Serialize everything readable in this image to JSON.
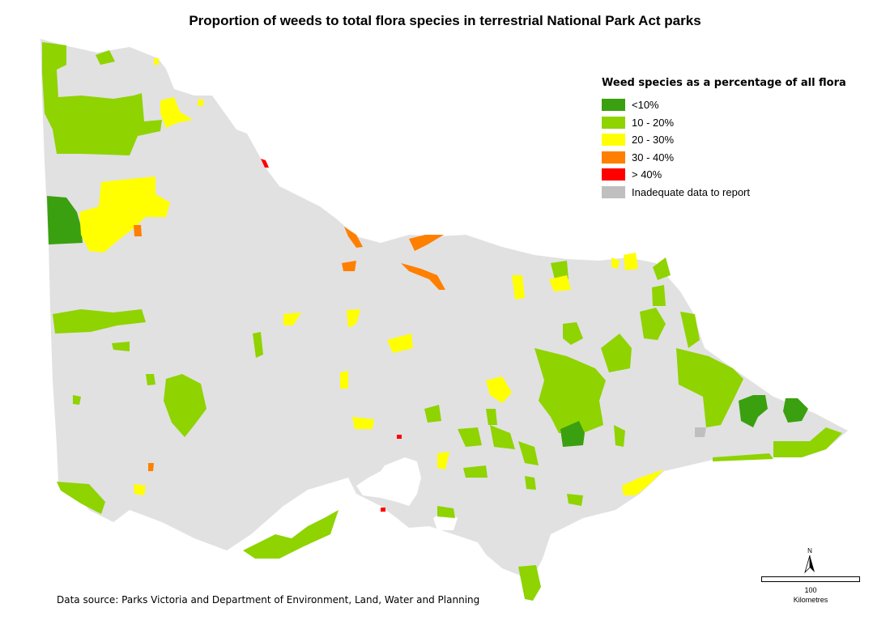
{
  "title": "Proportion of weeds to total flora species in terrestrial National Park Act parks",
  "legend": {
    "title": "Weed species as a percentage of all flora",
    "items": [
      {
        "label": "<10%",
        "color": "#3aa00f"
      },
      {
        "label": "10 - 20%",
        "color": "#8fd300"
      },
      {
        "label": "20 - 30%",
        "color": "#ffff00"
      },
      {
        "label": "30 - 40%",
        "color": "#ff7f00"
      },
      {
        "label": "> 40%",
        "color": "#ff0000"
      },
      {
        "label": "Inadequate data to report",
        "color": "#bfbfbf"
      }
    ]
  },
  "land_color": "#e1e1e1",
  "source": "Data source: Parks Victoria and Department of Environment, Land, Water and Planning",
  "north_arrow_label": "N",
  "scale_bar": {
    "value": "100",
    "unit": "Kilometres"
  }
}
